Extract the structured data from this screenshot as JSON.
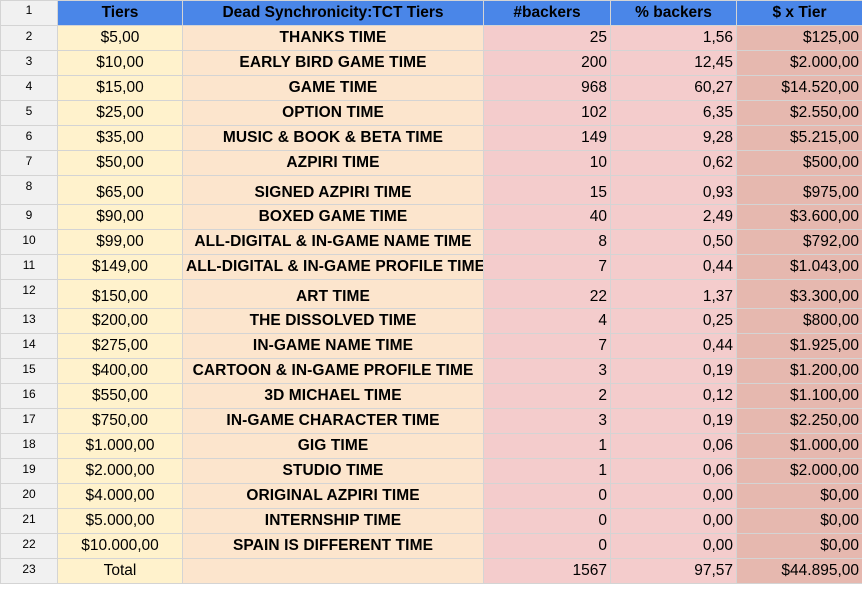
{
  "headers": {
    "tiers": "Tiers",
    "name": "Dead Synchronicity:TCT Tiers",
    "backers": "#backers",
    "pct": "% backers",
    "total": "$ x Tier"
  },
  "rows": [
    {
      "num": "2",
      "tier": "$5,00",
      "name": "THANKS TIME",
      "backers": "25",
      "pct": "1,56",
      "total": "$125,00"
    },
    {
      "num": "3",
      "tier": "$10,00",
      "name": "EARLY BIRD GAME TIME",
      "backers": "200",
      "pct": "12,45",
      "total": "$2.000,00"
    },
    {
      "num": "4",
      "tier": "$15,00",
      "name": "GAME TIME",
      "backers": "968",
      "pct": "60,27",
      "total": "$14.520,00"
    },
    {
      "num": "5",
      "tier": "$25,00",
      "name": "OPTION TIME",
      "backers": "102",
      "pct": "6,35",
      "total": "$2.550,00"
    },
    {
      "num": "6",
      "tier": "$35,00",
      "name": "MUSIC & BOOK & BETA TIME",
      "backers": "149",
      "pct": "9,28",
      "total": "$5.215,00"
    },
    {
      "num": "7",
      "tier": "$50,00",
      "name": "AZPIRI TIME",
      "backers": "10",
      "pct": "0,62",
      "total": "$500,00"
    },
    {
      "num": "8",
      "tier": "$65,00",
      "name": "SIGNED AZPIRI TIME",
      "backers": "15",
      "pct": "0,93",
      "total": "$975,00"
    },
    {
      "num": "9",
      "tier": "$90,00",
      "name": "BOXED GAME TIME",
      "backers": "40",
      "pct": "2,49",
      "total": "$3.600,00"
    },
    {
      "num": "10",
      "tier": "$99,00",
      "name": "ALL-DIGITAL & IN-GAME NAME TIME",
      "backers": "8",
      "pct": "0,50",
      "total": "$792,00"
    },
    {
      "num": "11",
      "tier": "$149,00",
      "name": "ALL-DIGITAL & IN-GAME PROFILE TIME",
      "backers": "7",
      "pct": "0,44",
      "total": "$1.043,00"
    },
    {
      "num": "12",
      "tier": "$150,00",
      "name": "ART TIME",
      "backers": "22",
      "pct": "1,37",
      "total": "$3.300,00"
    },
    {
      "num": "13",
      "tier": "$200,00",
      "name": "THE DISSOLVED TIME",
      "backers": "4",
      "pct": "0,25",
      "total": "$800,00"
    },
    {
      "num": "14",
      "tier": "$275,00",
      "name": "IN-GAME NAME TIME",
      "backers": "7",
      "pct": "0,44",
      "total": "$1.925,00"
    },
    {
      "num": "15",
      "tier": "$400,00",
      "name": "CARTOON & IN-GAME PROFILE TIME",
      "backers": "3",
      "pct": "0,19",
      "total": "$1.200,00"
    },
    {
      "num": "16",
      "tier": "$550,00",
      "name": "3D MICHAEL TIME",
      "backers": "2",
      "pct": "0,12",
      "total": "$1.100,00"
    },
    {
      "num": "17",
      "tier": "$750,00",
      "name": "IN-GAME CHARACTER TIME",
      "backers": "3",
      "pct": "0,19",
      "total": "$2.250,00"
    },
    {
      "num": "18",
      "tier": "$1.000,00",
      "name": "GIG TIME",
      "backers": "1",
      "pct": "0,06",
      "total": "$1.000,00"
    },
    {
      "num": "19",
      "tier": "$2.000,00",
      "name": "STUDIO TIME",
      "backers": "1",
      "pct": "0,06",
      "total": "$2.000,00"
    },
    {
      "num": "20",
      "tier": "$4.000,00",
      "name": "ORIGINAL AZPIRI TIME",
      "backers": "0",
      "pct": "0,00",
      "total": "$0,00"
    },
    {
      "num": "21",
      "tier": "$5.000,00",
      "name": "INTERNSHIP TIME",
      "backers": "0",
      "pct": "0,00",
      "total": "$0,00"
    },
    {
      "num": "22",
      "tier": "$10.000,00",
      "name": "SPAIN IS DIFFERENT TIME",
      "backers": "0",
      "pct": "0,00",
      "total": "$0,00"
    }
  ],
  "total_row": {
    "num": "23",
    "tier": "Total",
    "name": "",
    "backers": "1567",
    "pct": "97,57",
    "total": "$44.895,00"
  },
  "colors": {
    "header_blue": "#4a86e8",
    "tier_col": "#fff2cc",
    "name_col": "#fce5cd",
    "backers_col": "#f4cccc",
    "total_col": "#e6b8af"
  }
}
